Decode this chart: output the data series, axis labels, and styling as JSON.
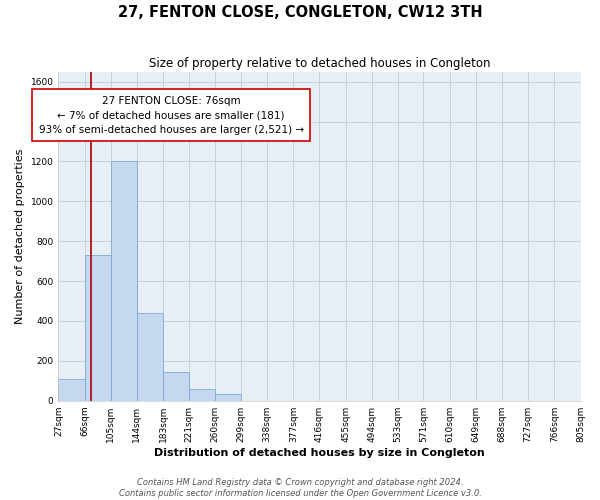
{
  "title": "27, FENTON CLOSE, CONGLETON, CW12 3TH",
  "subtitle": "Size of property relative to detached houses in Congleton",
  "xlabel": "Distribution of detached houses by size in Congleton",
  "ylabel": "Number of detached properties",
  "bar_edges": [
    27,
    66,
    105,
    144,
    183,
    221,
    260,
    299,
    338,
    377,
    416,
    455,
    494,
    533,
    571,
    610,
    649,
    688,
    727,
    766,
    805
  ],
  "bar_heights": [
    110,
    730,
    1200,
    440,
    145,
    60,
    35,
    0,
    0,
    0,
    0,
    0,
    0,
    0,
    0,
    0,
    0,
    0,
    0,
    0
  ],
  "bar_color": "#c5d8f0",
  "bar_edge_color": "#7aaad4",
  "property_line_x": 76,
  "property_line_color": "#aa0000",
  "annotation_text": "27 FENTON CLOSE: 76sqm\n← 7% of detached houses are smaller (181)\n93% of semi-detached houses are larger (2,521) →",
  "annotation_box_color": "#ffffff",
  "annotation_box_edge_color": "#cc0000",
  "ylim": [
    0,
    1650
  ],
  "yticks": [
    0,
    200,
    400,
    600,
    800,
    1000,
    1200,
    1400,
    1600
  ],
  "tick_labels": [
    "27sqm",
    "66sqm",
    "105sqm",
    "144sqm",
    "183sqm",
    "221sqm",
    "260sqm",
    "299sqm",
    "338sqm",
    "377sqm",
    "416sqm",
    "455sqm",
    "494sqm",
    "533sqm",
    "571sqm",
    "610sqm",
    "649sqm",
    "688sqm",
    "727sqm",
    "766sqm",
    "805sqm"
  ],
  "footer_line1": "Contains HM Land Registry data © Crown copyright and database right 2024.",
  "footer_line2": "Contains public sector information licensed under the Open Government Licence v3.0.",
  "background_color": "#ffffff",
  "plot_bg_color": "#e8eef6",
  "grid_color": "#c8d0dc",
  "title_fontsize": 10.5,
  "subtitle_fontsize": 8.5,
  "axis_label_fontsize": 8,
  "tick_fontsize": 6.5,
  "annotation_fontsize": 7.5,
  "footer_fontsize": 6
}
